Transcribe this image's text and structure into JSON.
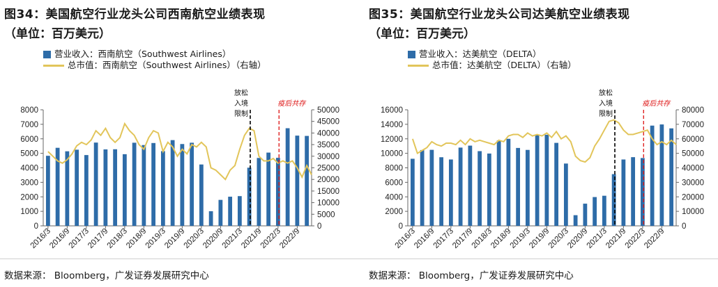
{
  "source_text": "数据来源： Bloomberg，广发证券发展研究中心",
  "charts": [
    {
      "title": "图34：美国航空行业龙头公司西南航空业绩表现",
      "unit": "（单位：百万美元）",
      "legend_bar": "营业收入：西南航空（Southwest Airlines）",
      "legend_line": "总市值：西南航空（Southwest Airlines）（右轴）",
      "ann_black": "放松入境限制",
      "ann_red": "疫后共存",
      "colors": {
        "bar": "#2e6ca8",
        "line": "#e2c55a"
      }
    },
    {
      "title": "图35：美国航空行业龙头公司达美航空业绩表现",
      "unit": "（单位：百万美元）",
      "legend_bar": "营业收入：达美航空（DELTA）",
      "legend_line": "总市值：达美航空（DELTA）（右轴）",
      "ann_black": "放松入境限制",
      "ann_red": "疫后共存",
      "colors": {
        "bar": "#2e6ca8",
        "line": "#e2c55a"
      }
    }
  ],
  "chart_data": [
    {
      "type": "bar",
      "categories": [
        "2016/3",
        "2016/6",
        "2016/9",
        "2016/12",
        "2017/3",
        "2017/6",
        "2017/9",
        "2017/12",
        "2018/3",
        "2018/6",
        "2018/9",
        "2018/12",
        "2019/3",
        "2019/6",
        "2019/9",
        "2019/12",
        "2020/3",
        "2020/6",
        "2020/9",
        "2020/12",
        "2021/3",
        "2021/6",
        "2021/9",
        "2021/12",
        "2022/3",
        "2022/6",
        "2022/9",
        "2022/12"
      ],
      "x_tick_labels": [
        "2016/3",
        "2016/9",
        "2017/3",
        "2017/9",
        "2018/3",
        "2018/9",
        "2019/3",
        "2019/9",
        "2020/3",
        "2020/9",
        "2021/3",
        "2021/9",
        "2022/3",
        "2022/9"
      ],
      "series": [
        {
          "name": "营业收入：西南航空（Southwest Airlines）",
          "axis": "left",
          "values": [
            4830,
            5380,
            5140,
            5250,
            4880,
            5740,
            5270,
            5280,
            4940,
            5730,
            5570,
            5710,
            5150,
            5910,
            5640,
            5730,
            4230,
            1010,
            1790,
            2010,
            2050,
            4010,
            4680,
            5050,
            4690,
            6730,
            6220,
            6200
          ]
        },
        {
          "name": "总市值：西南航空（Southwest Airlines）（右轴）",
          "axis": "right",
          "type": "line",
          "x": [
            0,
            0.5,
            1,
            1.5,
            2,
            2.5,
            3,
            3.5,
            4,
            4.5,
            5,
            5.5,
            6,
            6.5,
            7,
            7.5,
            8,
            8.5,
            9,
            9.5,
            10,
            10.5,
            11,
            11.5,
            12,
            12.5,
            13,
            13.5,
            14,
            14.5,
            15,
            15.5,
            16,
            16.5,
            17,
            17.5,
            18,
            18.5,
            19,
            19.5,
            20,
            20.5,
            21,
            21.5,
            22,
            22.5,
            23,
            23.5,
            24,
            24.5,
            25,
            25.5,
            26,
            26.5,
            27,
            27.5
          ],
          "values": [
            32000,
            30000,
            28000,
            27000,
            28500,
            31000,
            34500,
            36000,
            35000,
            37000,
            41000,
            39000,
            42000,
            38000,
            36000,
            38000,
            44000,
            41000,
            39000,
            35000,
            33000,
            38000,
            41000,
            40000,
            32000,
            36000,
            34000,
            30000,
            33000,
            31000,
            35000,
            34000,
            36000,
            34000,
            25000,
            24000,
            22000,
            20000,
            24000,
            26000,
            33000,
            39000,
            42000,
            41000,
            30000,
            28000,
            28000,
            29000,
            27000,
            28000,
            27000,
            28000,
            25000,
            21000,
            26000,
            22000
          ]
        }
      ],
      "ylim_left": [
        0,
        8000
      ],
      "yticks_left": [
        "0",
        "1000",
        "2000",
        "3000",
        "4000",
        "5000",
        "6000",
        "7000",
        "8000"
      ],
      "ylim_right": [
        0,
        50000
      ],
      "yticks_right": [
        "0",
        "5000",
        "10000",
        "15000",
        "20000",
        "25000",
        "30000",
        "35000",
        "40000",
        "45000",
        "50000"
      ],
      "vlines": [
        {
          "at": 21.1,
          "color": "#000"
        },
        {
          "at": 24.1,
          "color": "#d11"
        }
      ]
    },
    {
      "type": "bar",
      "categories": [
        "2016/3",
        "2016/6",
        "2016/9",
        "2016/12",
        "2017/3",
        "2017/6",
        "2017/9",
        "2017/12",
        "2018/3",
        "2018/6",
        "2018/9",
        "2018/12",
        "2019/3",
        "2019/6",
        "2019/9",
        "2019/12",
        "2020/3",
        "2020/6",
        "2020/9",
        "2020/12",
        "2021/3",
        "2021/6",
        "2021/9",
        "2021/12",
        "2022/3",
        "2022/6",
        "2022/9",
        "2022/12"
      ],
      "x_tick_labels": [
        "2016/3",
        "2016/9",
        "2017/3",
        "2017/9",
        "2018/3",
        "2018/9",
        "2019/3",
        "2019/9",
        "2020/3",
        "2020/9",
        "2021/3",
        "2021/9",
        "2022/3",
        "2022/9"
      ],
      "series": [
        {
          "name": "营业收入：达美航空（DELTA）",
          "axis": "left",
          "values": [
            9250,
            10450,
            10480,
            9460,
            9150,
            10790,
            11060,
            10300,
            9970,
            11780,
            12000,
            10740,
            10470,
            12540,
            12560,
            11440,
            8590,
            1470,
            3060,
            3970,
            4150,
            7130,
            9150,
            9470,
            9350,
            13820,
            13980,
            13440
          ]
        },
        {
          "name": "总市值：达美航空（DELTA）（右轴）",
          "axis": "right",
          "type": "line",
          "x": [
            0,
            0.5,
            1,
            1.5,
            2,
            2.5,
            3,
            3.5,
            4,
            4.5,
            5,
            5.5,
            6,
            6.5,
            7,
            7.5,
            8,
            8.5,
            9,
            9.5,
            10,
            10.5,
            11,
            11.5,
            12,
            12.5,
            13,
            13.5,
            14,
            14.5,
            15,
            15.5,
            16,
            16.5,
            17,
            17.5,
            18,
            18.5,
            19,
            19.5,
            20,
            20.5,
            21,
            21.5,
            22,
            22.5,
            23,
            23.5,
            24,
            24.5,
            25,
            25.5,
            26,
            26.5,
            27,
            27.5
          ],
          "values": [
            60000,
            50000,
            52000,
            54000,
            58000,
            56000,
            55000,
            57000,
            57000,
            56000,
            59000,
            56000,
            60000,
            58000,
            59000,
            58000,
            57000,
            56000,
            59000,
            58000,
            62000,
            63000,
            63000,
            61000,
            64000,
            62000,
            63000,
            62000,
            64000,
            61000,
            65000,
            60000,
            62000,
            58000,
            48000,
            45000,
            44000,
            47000,
            55000,
            60000,
            66000,
            72000,
            73000,
            71000,
            66000,
            63000,
            63000,
            64000,
            65000,
            66000,
            60000,
            56000,
            58000,
            56000,
            59000,
            56000
          ]
        }
      ],
      "ylim_left": [
        0,
        16000
      ],
      "yticks_left": [
        "0",
        "2000",
        "4000",
        "6000",
        "8000",
        "10000",
        "12000",
        "14000",
        "16000"
      ],
      "ylim_right": [
        0,
        80000
      ],
      "yticks_right": [
        "0",
        "10000",
        "20000",
        "30000",
        "40000",
        "50000",
        "60000",
        "70000",
        "80000"
      ],
      "vlines": [
        {
          "at": 21.1,
          "color": "#000"
        },
        {
          "at": 24.1,
          "color": "#d11"
        }
      ]
    }
  ]
}
